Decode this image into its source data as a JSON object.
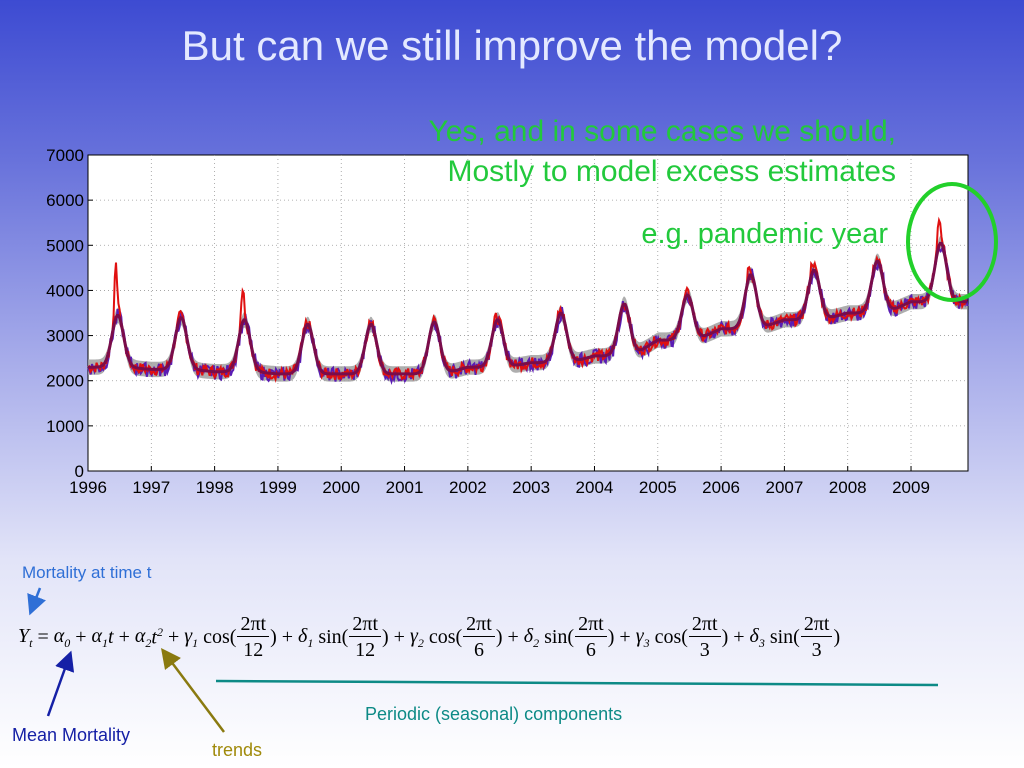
{
  "slide": {
    "title": "But can we still improve the model?",
    "callout_line1": "Yes, and in some cases we should,",
    "callout_line2": "Mostly to model excess estimates",
    "callout_example": "e.g. pandemic year",
    "mortality_label": "Mortality at time t",
    "mean_label": "Mean Mortality",
    "trends_label": "trends",
    "periodic_label": "Periodic (seasonal) components"
  },
  "formula": {
    "lhs": "Y",
    "lhs_sub": "t",
    "eq": "=",
    "terms": [
      {
        "sign": "",
        "coef": "α",
        "sub": "0",
        "var": "",
        "pow": ""
      },
      {
        "sign": "+",
        "coef": "α",
        "sub": "1",
        "var": "t",
        "pow": ""
      },
      {
        "sign": "+",
        "coef": "α",
        "sub": "2",
        "var": "t",
        "pow": "2"
      }
    ],
    "periodic": [
      {
        "sign": "+",
        "coef": "γ",
        "sub": "1",
        "fn": "cos(",
        "num": "2πt",
        "den": "12",
        "close": ")"
      },
      {
        "sign": "+",
        "coef": "δ",
        "sub": "1",
        "fn": "sin(",
        "num": "2πt",
        "den": "12",
        "close": ")"
      },
      {
        "sign": "+",
        "coef": "γ",
        "sub": "2",
        "fn": "cos(",
        "num": "2πt",
        "den": "6",
        "close": ")"
      },
      {
        "sign": "+",
        "coef": "δ",
        "sub": "2",
        "fn": "sin(",
        "num": "2πt",
        "den": "6",
        "close": ")"
      },
      {
        "sign": "+",
        "coef": "γ",
        "sub": "3",
        "fn": "cos(",
        "num": "2πt",
        "den": "3",
        "close": ")"
      },
      {
        "sign": "+",
        "coef": "δ",
        "sub": "3",
        "fn": "sin(",
        "num": "2πt",
        "den": "3",
        "close": ")"
      }
    ]
  },
  "chart_data": {
    "type": "line",
    "title": "",
    "xlabel": "",
    "ylabel": "",
    "xlim": [
      1996,
      2009.9
    ],
    "ylim": [
      0,
      7000
    ],
    "yticks": [
      0,
      1000,
      2000,
      3000,
      4000,
      5000,
      6000,
      7000
    ],
    "xticks": [
      "1996",
      "1997",
      "1998",
      "1999",
      "2000",
      "2001",
      "2002",
      "2003",
      "2004",
      "2005",
      "2006",
      "2007",
      "2008",
      "2009"
    ],
    "grid": true,
    "colors": {
      "observed": "#e01010",
      "observed_alt": "#5a1cb4",
      "model_band": "#a0a0a0",
      "fit": "#7a0c4a",
      "highlight_circle": "#22d02a"
    },
    "annual_cycle": [
      {
        "year": 1996,
        "trough": 2300,
        "peak": 3450,
        "spike": 4550
      },
      {
        "year": 1997,
        "trough": 2250,
        "peak": 3400,
        "spike": 3450
      },
      {
        "year": 1998,
        "trough": 2200,
        "peak": 3350,
        "spike": 4100
      },
      {
        "year": 1999,
        "trough": 2150,
        "peak": 3250,
        "spike": 3300
      },
      {
        "year": 2000,
        "trough": 2150,
        "peak": 3250,
        "spike": 3300
      },
      {
        "year": 2001,
        "trough": 2150,
        "peak": 3300,
        "spike": 3350
      },
      {
        "year": 2002,
        "trough": 2300,
        "peak": 3350,
        "spike": 3450
      },
      {
        "year": 2003,
        "trough": 2400,
        "peak": 3500,
        "spike": 3600
      },
      {
        "year": 2004,
        "trough": 2550,
        "peak": 3700,
        "spike": 3750
      },
      {
        "year": 2005,
        "trough": 2900,
        "peak": 3900,
        "spike": 3950
      },
      {
        "year": 2006,
        "trough": 3150,
        "peak": 4350,
        "spike": 4650
      },
      {
        "year": 2007,
        "trough": 3350,
        "peak": 4450,
        "spike": 4700
      },
      {
        "year": 2008,
        "trough": 3500,
        "peak": 4650,
        "spike": 4750
      },
      {
        "year": 2009,
        "trough": 3750,
        "peak": 5050,
        "spike": 5700
      }
    ]
  }
}
